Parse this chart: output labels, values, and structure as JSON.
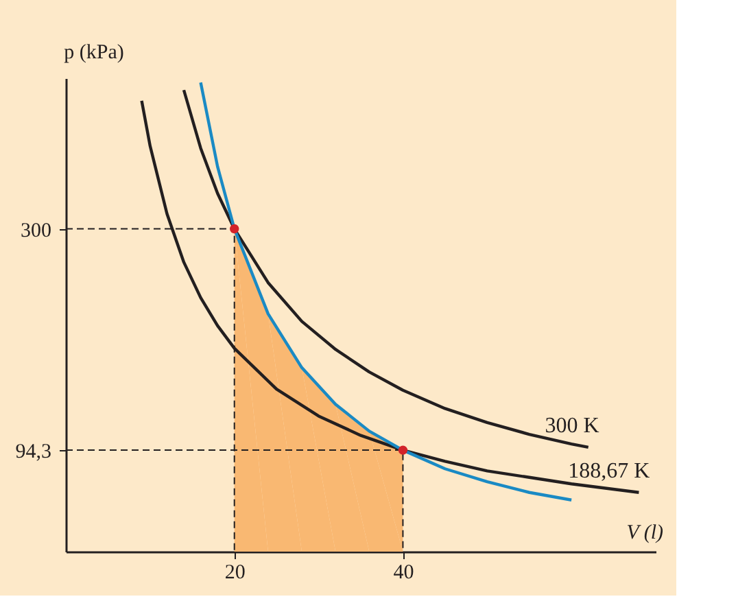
{
  "chart_data": {
    "type": "line",
    "xlabel": "V (l)",
    "ylabel": "p (kPa)",
    "xlim": [
      0,
      70
    ],
    "ylim": [
      0,
      440
    ],
    "xticks": [
      20,
      40
    ],
    "yticks": [
      {
        "value": 94.3,
        "label": "94,3"
      },
      300
    ],
    "grid": false,
    "series": [
      {
        "type": "area",
        "color": "#f9b872",
        "x": [
          20,
          24,
          28,
          32,
          36,
          40
        ],
        "values": [
          300,
          221,
          171,
          137,
          112,
          94.3
        ]
      },
      {
        "line_style": "dashed",
        "color": "#231f20",
        "x": [
          0,
          20,
          20
        ],
        "values": [
          300,
          300,
          0
        ]
      },
      {
        "line_style": "dashed",
        "color": "#231f20",
        "x": [
          0,
          40,
          40
        ],
        "values": [
          94.3,
          94.3,
          0
        ]
      },
      {
        "name": "300 K",
        "color": "#231f20",
        "x": [
          14,
          16,
          18,
          20,
          24,
          28,
          32,
          36,
          40,
          45,
          50,
          55,
          60,
          62
        ],
        "values": [
          429,
          375,
          333,
          300,
          250,
          214,
          188,
          167,
          150,
          133,
          120,
          109,
          100,
          97
        ]
      },
      {
        "name": "188,67 K",
        "color": "#231f20",
        "x": [
          9,
          10,
          12,
          14,
          16,
          18,
          20,
          25,
          30,
          35,
          40,
          45,
          50,
          55,
          60,
          68
        ],
        "values": [
          419,
          377,
          314,
          269,
          236,
          210,
          189,
          151,
          126,
          108,
          94.3,
          84,
          75,
          69,
          63,
          55
        ]
      },
      {
        "color": "#1a8ac4",
        "x": [
          16,
          18,
          20,
          24,
          28,
          32,
          36,
          40,
          45,
          50,
          55,
          60
        ],
        "values": [
          436,
          358,
          300,
          221,
          171,
          137,
          112,
          94.3,
          77,
          65,
          55,
          48
        ]
      },
      {
        "type": "scatter",
        "marker": "circle",
        "color": "#d2232a",
        "x": [
          20,
          40
        ],
        "values": [
          300,
          94.3
        ]
      }
    ]
  }
}
